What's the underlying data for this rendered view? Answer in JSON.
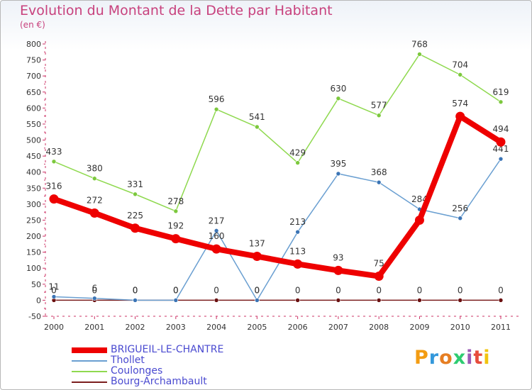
{
  "title": "Evolution du Montant de la Dette par Habitant",
  "subtitle": "(en €)",
  "logo": "Proxiti",
  "chart_data": {
    "type": "line",
    "title": "Evolution du Montant de la Dette par Habitant",
    "ylabel": "(en €)",
    "xlabel": "",
    "grid": false,
    "ylim": [
      -50,
      800
    ],
    "yticks": [
      -50,
      0,
      50,
      100,
      150,
      200,
      250,
      300,
      350,
      400,
      450,
      500,
      550,
      600,
      650,
      700,
      750,
      800
    ],
    "x": [
      "2000",
      "2001",
      "2002",
      "2003",
      "2004",
      "2005",
      "2006",
      "2007",
      "2008",
      "2009",
      "2010",
      "2011"
    ],
    "legend_position": "bottom-left",
    "series": [
      {
        "name": "Bourg-Archambault",
        "color": "#7b1e1e",
        "point_color": "#6a1010",
        "values": [
          0,
          0,
          0,
          0,
          0,
          0,
          0,
          0,
          0,
          0,
          0,
          0
        ],
        "labels": [
          "0",
          "0",
          "0",
          "0",
          "0",
          "0",
          "0",
          "0",
          "0",
          "0",
          "0",
          "0"
        ],
        "label_offset": -10
      },
      {
        "name": "Coulonges",
        "color": "#8fd94f",
        "point_color": "#7cc83d",
        "values": [
          433,
          380,
          331,
          278,
          596,
          541,
          429,
          630,
          577,
          768,
          704,
          619
        ],
        "labels": [
          "433",
          "380",
          "331",
          "278",
          "596",
          "541",
          "429",
          "630",
          "577",
          "768",
          "704",
          "619"
        ],
        "label_offset": -10
      },
      {
        "name": "Thollet",
        "color": "#6a9fd1",
        "point_color": "#3b74b5",
        "values": [
          11,
          6,
          0,
          0,
          217,
          0,
          213,
          395,
          368,
          284,
          256,
          441
        ],
        "labels": [
          "11",
          "6",
          "0",
          "0",
          "217",
          "0",
          "213",
          "395",
          "368",
          "284",
          "256",
          "441"
        ],
        "label_offset": -10
      },
      {
        "name": "BRIGUEIL-LE-CHANTRE",
        "color": "#ee0000",
        "point_color": "#ee0000",
        "values": [
          316,
          272,
          225,
          192,
          160,
          137,
          113,
          93,
          75,
          250,
          574,
          494
        ],
        "labels": [
          "316",
          "272",
          "225",
          "192",
          "160",
          "137",
          "113",
          "93",
          "75",
          "",
          "574",
          "494"
        ],
        "label_offset": -14
      }
    ]
  },
  "legend": [
    {
      "label": "BRIGUEIL-LE-CHANTRE",
      "color": "#ee0000",
      "thickness": 8
    },
    {
      "label": "Thollet",
      "color": "#6a9fd1",
      "thickness": 2
    },
    {
      "label": "Coulonges",
      "color": "#8fd94f",
      "thickness": 2
    },
    {
      "label": "Bourg-Archambault",
      "color": "#7b1e1e",
      "thickness": 2
    }
  ],
  "colors": {
    "title": "#c8417d",
    "axis": "#cc3366",
    "tick_label": "#333333",
    "legend_text": "#4a4ad0"
  }
}
